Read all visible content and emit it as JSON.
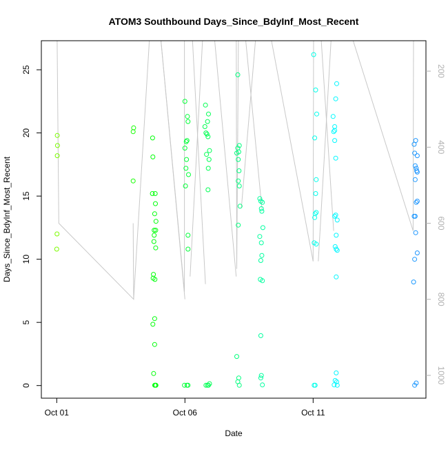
{
  "chart_data": {
    "type": "scatter",
    "title": "ATOM3 Southbound Days_Since_BdyInf_Most_Recent",
    "xlabel": "Date",
    "ylabel": "Days_Since_BdyInf_Most_Recent",
    "x_ticks": [
      {
        "label": "Oct 01",
        "x": 0
      },
      {
        "label": "Oct 06",
        "x": 5
      },
      {
        "label": "Oct 11",
        "x": 10
      }
    ],
    "y_ticks": [
      0,
      5,
      10,
      15,
      20,
      25
    ],
    "y2_ticks": [
      200,
      400,
      600,
      800,
      1000
    ],
    "x_range": [
      -0.6,
      14.4
    ],
    "y_range": [
      -1,
      27.3
    ],
    "y2_range": [
      1060,
      120
    ],
    "grid": false,
    "points": [
      {
        "x": 0.02,
        "y": 19.8
      },
      {
        "x": 0.03,
        "y": 19.0
      },
      {
        "x": 0.02,
        "y": 18.2
      },
      {
        "x": 0.01,
        "y": 12.0
      },
      {
        "x": 0.0,
        "y": 10.8
      },
      {
        "x": 3.0,
        "y": 20.4
      },
      {
        "x": 2.98,
        "y": 20.1
      },
      {
        "x": 2.98,
        "y": 16.2
      },
      {
        "x": 3.74,
        "y": 19.6
      },
      {
        "x": 3.75,
        "y": 18.1
      },
      {
        "x": 3.73,
        "y": 15.2
      },
      {
        "x": 3.84,
        "y": 15.2
      },
      {
        "x": 3.85,
        "y": 14.4
      },
      {
        "x": 3.82,
        "y": 13.6
      },
      {
        "x": 3.87,
        "y": 13.0
      },
      {
        "x": 3.8,
        "y": 12.3
      },
      {
        "x": 3.86,
        "y": 12.3
      },
      {
        "x": 3.8,
        "y": 11.9
      },
      {
        "x": 3.79,
        "y": 11.4
      },
      {
        "x": 3.86,
        "y": 10.9
      },
      {
        "x": 3.77,
        "y": 8.8
      },
      {
        "x": 3.76,
        "y": 8.5
      },
      {
        "x": 3.83,
        "y": 8.4
      },
      {
        "x": 3.82,
        "y": 5.3
      },
      {
        "x": 3.75,
        "y": 4.85
      },
      {
        "x": 3.82,
        "y": 3.25
      },
      {
        "x": 3.78,
        "y": 0.95
      },
      {
        "x": 3.82,
        "y": 0.02
      },
      {
        "x": 3.85,
        "y": 0.02
      },
      {
        "x": 3.87,
        "y": 0.02
      },
      {
        "x": 5.0,
        "y": 22.5
      },
      {
        "x": 5.1,
        "y": 21.3
      },
      {
        "x": 5.12,
        "y": 20.9
      },
      {
        "x": 5.05,
        "y": 19.3
      },
      {
        "x": 5.08,
        "y": 19.4
      },
      {
        "x": 5.0,
        "y": 18.8
      },
      {
        "x": 5.06,
        "y": 17.9
      },
      {
        "x": 5.04,
        "y": 17.2
      },
      {
        "x": 5.14,
        "y": 16.7
      },
      {
        "x": 5.02,
        "y": 15.8
      },
      {
        "x": 5.12,
        "y": 11.9
      },
      {
        "x": 5.12,
        "y": 10.8
      },
      {
        "x": 4.98,
        "y": 0.02
      },
      {
        "x": 5.08,
        "y": 0.02
      },
      {
        "x": 5.12,
        "y": 0.02
      },
      {
        "x": 5.8,
        "y": 22.2
      },
      {
        "x": 5.92,
        "y": 21.5
      },
      {
        "x": 5.78,
        "y": 20.5
      },
      {
        "x": 5.88,
        "y": 20.9
      },
      {
        "x": 5.82,
        "y": 20.0
      },
      {
        "x": 5.86,
        "y": 19.9
      },
      {
        "x": 5.9,
        "y": 19.7
      },
      {
        "x": 5.96,
        "y": 18.6
      },
      {
        "x": 5.84,
        "y": 18.3
      },
      {
        "x": 5.94,
        "y": 17.9
      },
      {
        "x": 5.91,
        "y": 17.2
      },
      {
        "x": 5.9,
        "y": 15.5
      },
      {
        "x": 5.82,
        "y": 0.02
      },
      {
        "x": 5.88,
        "y": 0.02
      },
      {
        "x": 5.92,
        "y": 0.02
      },
      {
        "x": 5.96,
        "y": 0.15
      },
      {
        "x": 7.06,
        "y": 24.6
      },
      {
        "x": 7.12,
        "y": 19.0
      },
      {
        "x": 7.06,
        "y": 18.8
      },
      {
        "x": 7.1,
        "y": 18.5
      },
      {
        "x": 7.02,
        "y": 18.4
      },
      {
        "x": 7.08,
        "y": 17.9
      },
      {
        "x": 7.11,
        "y": 17.0
      },
      {
        "x": 7.08,
        "y": 16.2
      },
      {
        "x": 7.12,
        "y": 15.8
      },
      {
        "x": 7.15,
        "y": 14.2
      },
      {
        "x": 7.08,
        "y": 12.7
      },
      {
        "x": 7.02,
        "y": 2.3
      },
      {
        "x": 7.1,
        "y": 0.6
      },
      {
        "x": 7.06,
        "y": 0.3
      },
      {
        "x": 7.12,
        "y": 0.02
      },
      {
        "x": 7.92,
        "y": 14.8
      },
      {
        "x": 7.96,
        "y": 14.6
      },
      {
        "x": 8.02,
        "y": 14.5
      },
      {
        "x": 7.98,
        "y": 14.0
      },
      {
        "x": 8.0,
        "y": 13.8
      },
      {
        "x": 8.04,
        "y": 12.5
      },
      {
        "x": 7.92,
        "y": 11.8
      },
      {
        "x": 7.98,
        "y": 11.3
      },
      {
        "x": 8.0,
        "y": 10.3
      },
      {
        "x": 7.96,
        "y": 9.9
      },
      {
        "x": 7.94,
        "y": 8.4
      },
      {
        "x": 8.02,
        "y": 8.3
      },
      {
        "x": 7.96,
        "y": 3.95
      },
      {
        "x": 7.98,
        "y": 0.8
      },
      {
        "x": 7.96,
        "y": 0.6
      },
      {
        "x": 8.02,
        "y": 0.05
      },
      {
        "x": 10.02,
        "y": 26.2
      },
      {
        "x": 10.1,
        "y": 23.4
      },
      {
        "x": 10.14,
        "y": 21.5
      },
      {
        "x": 10.06,
        "y": 19.6
      },
      {
        "x": 10.12,
        "y": 16.3
      },
      {
        "x": 10.1,
        "y": 15.2
      },
      {
        "x": 10.12,
        "y": 13.7
      },
      {
        "x": 10.08,
        "y": 13.6
      },
      {
        "x": 10.06,
        "y": 13.3
      },
      {
        "x": 10.04,
        "y": 11.3
      },
      {
        "x": 10.12,
        "y": 11.2
      },
      {
        "x": 10.04,
        "y": 0.02
      },
      {
        "x": 10.08,
        "y": 0.02
      },
      {
        "x": 10.92,
        "y": 23.9
      },
      {
        "x": 10.88,
        "y": 22.7
      },
      {
        "x": 10.78,
        "y": 21.3
      },
      {
        "x": 10.84,
        "y": 20.5
      },
      {
        "x": 10.8,
        "y": 20.1
      },
      {
        "x": 10.84,
        "y": 20.2
      },
      {
        "x": 10.84,
        "y": 19.4
      },
      {
        "x": 10.88,
        "y": 18.0
      },
      {
        "x": 10.84,
        "y": 13.4
      },
      {
        "x": 10.88,
        "y": 13.5
      },
      {
        "x": 10.94,
        "y": 13.1
      },
      {
        "x": 10.9,
        "y": 11.9
      },
      {
        "x": 10.86,
        "y": 11.0
      },
      {
        "x": 10.9,
        "y": 10.8
      },
      {
        "x": 10.94,
        "y": 10.7
      },
      {
        "x": 10.9,
        "y": 8.6
      },
      {
        "x": 10.9,
        "y": 1.0
      },
      {
        "x": 10.86,
        "y": 0.4
      },
      {
        "x": 10.92,
        "y": 0.3
      },
      {
        "x": 10.82,
        "y": 0.05
      },
      {
        "x": 10.94,
        "y": 0.02
      },
      {
        "x": 14.0,
        "y": 19.4
      },
      {
        "x": 13.94,
        "y": 19.1
      },
      {
        "x": 13.96,
        "y": 18.4
      },
      {
        "x": 14.06,
        "y": 18.2
      },
      {
        "x": 13.98,
        "y": 17.4
      },
      {
        "x": 14.02,
        "y": 17.2
      },
      {
        "x": 14.06,
        "y": 16.9
      },
      {
        "x": 14.04,
        "y": 17.0
      },
      {
        "x": 13.98,
        "y": 16.3
      },
      {
        "x": 14.06,
        "y": 14.6
      },
      {
        "x": 14.02,
        "y": 14.5
      },
      {
        "x": 13.94,
        "y": 13.4
      },
      {
        "x": 13.98,
        "y": 13.4
      },
      {
        "x": 14.0,
        "y": 12.1
      },
      {
        "x": 13.96,
        "y": 10.0
      },
      {
        "x": 14.06,
        "y": 10.5
      },
      {
        "x": 13.92,
        "y": 8.2
      },
      {
        "x": 14.02,
        "y": 0.2
      },
      {
        "x": 13.96,
        "y": 0.02
      }
    ],
    "profile_lines": [
      {
        "x": [
          0.0,
          0.0,
          0.08,
          3.0,
          2.98,
          3.0
        ],
        "y2": [
          0,
          0,
          600,
          800,
          600,
          800
        ]
      },
      {
        "x": [
          3.0,
          3.72,
          3.76,
          3.8,
          3.85,
          3.9,
          5.0
        ],
        "y2": [
          800,
          0,
          0,
          0,
          0,
          0,
          800
        ]
      },
      {
        "x": [
          3.9,
          4.98,
          4.98,
          5.06,
          5.14,
          5.2,
          5.8
        ],
        "y2": [
          0,
          780,
          0,
          0,
          0,
          0,
          760
        ]
      },
      {
        "x": [
          5.2,
          5.78,
          5.82,
          5.9,
          5.98,
          6.0,
          7.0
        ],
        "y2": [
          740,
          0,
          0,
          0,
          0,
          0,
          740
        ]
      },
      {
        "x": [
          6.0,
          7.0,
          7.02,
          7.1,
          7.18,
          7.2,
          8.0
        ],
        "y2": [
          0,
          0,
          720,
          0,
          0,
          0,
          560
        ]
      },
      {
        "x": [
          7.2,
          7.9,
          7.94,
          8.0,
          8.04,
          10.0
        ],
        "y2": [
          560,
          0,
          0,
          0,
          0,
          700
        ]
      },
      {
        "x": [
          10.0,
          10.02,
          10.08,
          10.14,
          10.2,
          10.8
        ],
        "y2": [
          700,
          0,
          0,
          0,
          0,
          620
        ]
      },
      {
        "x": [
          10.2,
          10.8,
          10.84,
          10.9,
          10.94,
          11.0,
          13.9
        ],
        "y2": [
          700,
          0,
          0,
          0,
          0,
          0,
          620
        ]
      },
      {
        "x": [
          13.9,
          13.92,
          13.96,
          14.02,
          14.08,
          14.1
        ],
        "y2": [
          620,
          0,
          0,
          0,
          0,
          0
        ]
      }
    ],
    "series_colors": [
      "#7CFC00",
      "#00FF00",
      "#00FF7F",
      "#00FFFF",
      "#1E90FF"
    ],
    "profile_color": "#c8c8c8"
  }
}
